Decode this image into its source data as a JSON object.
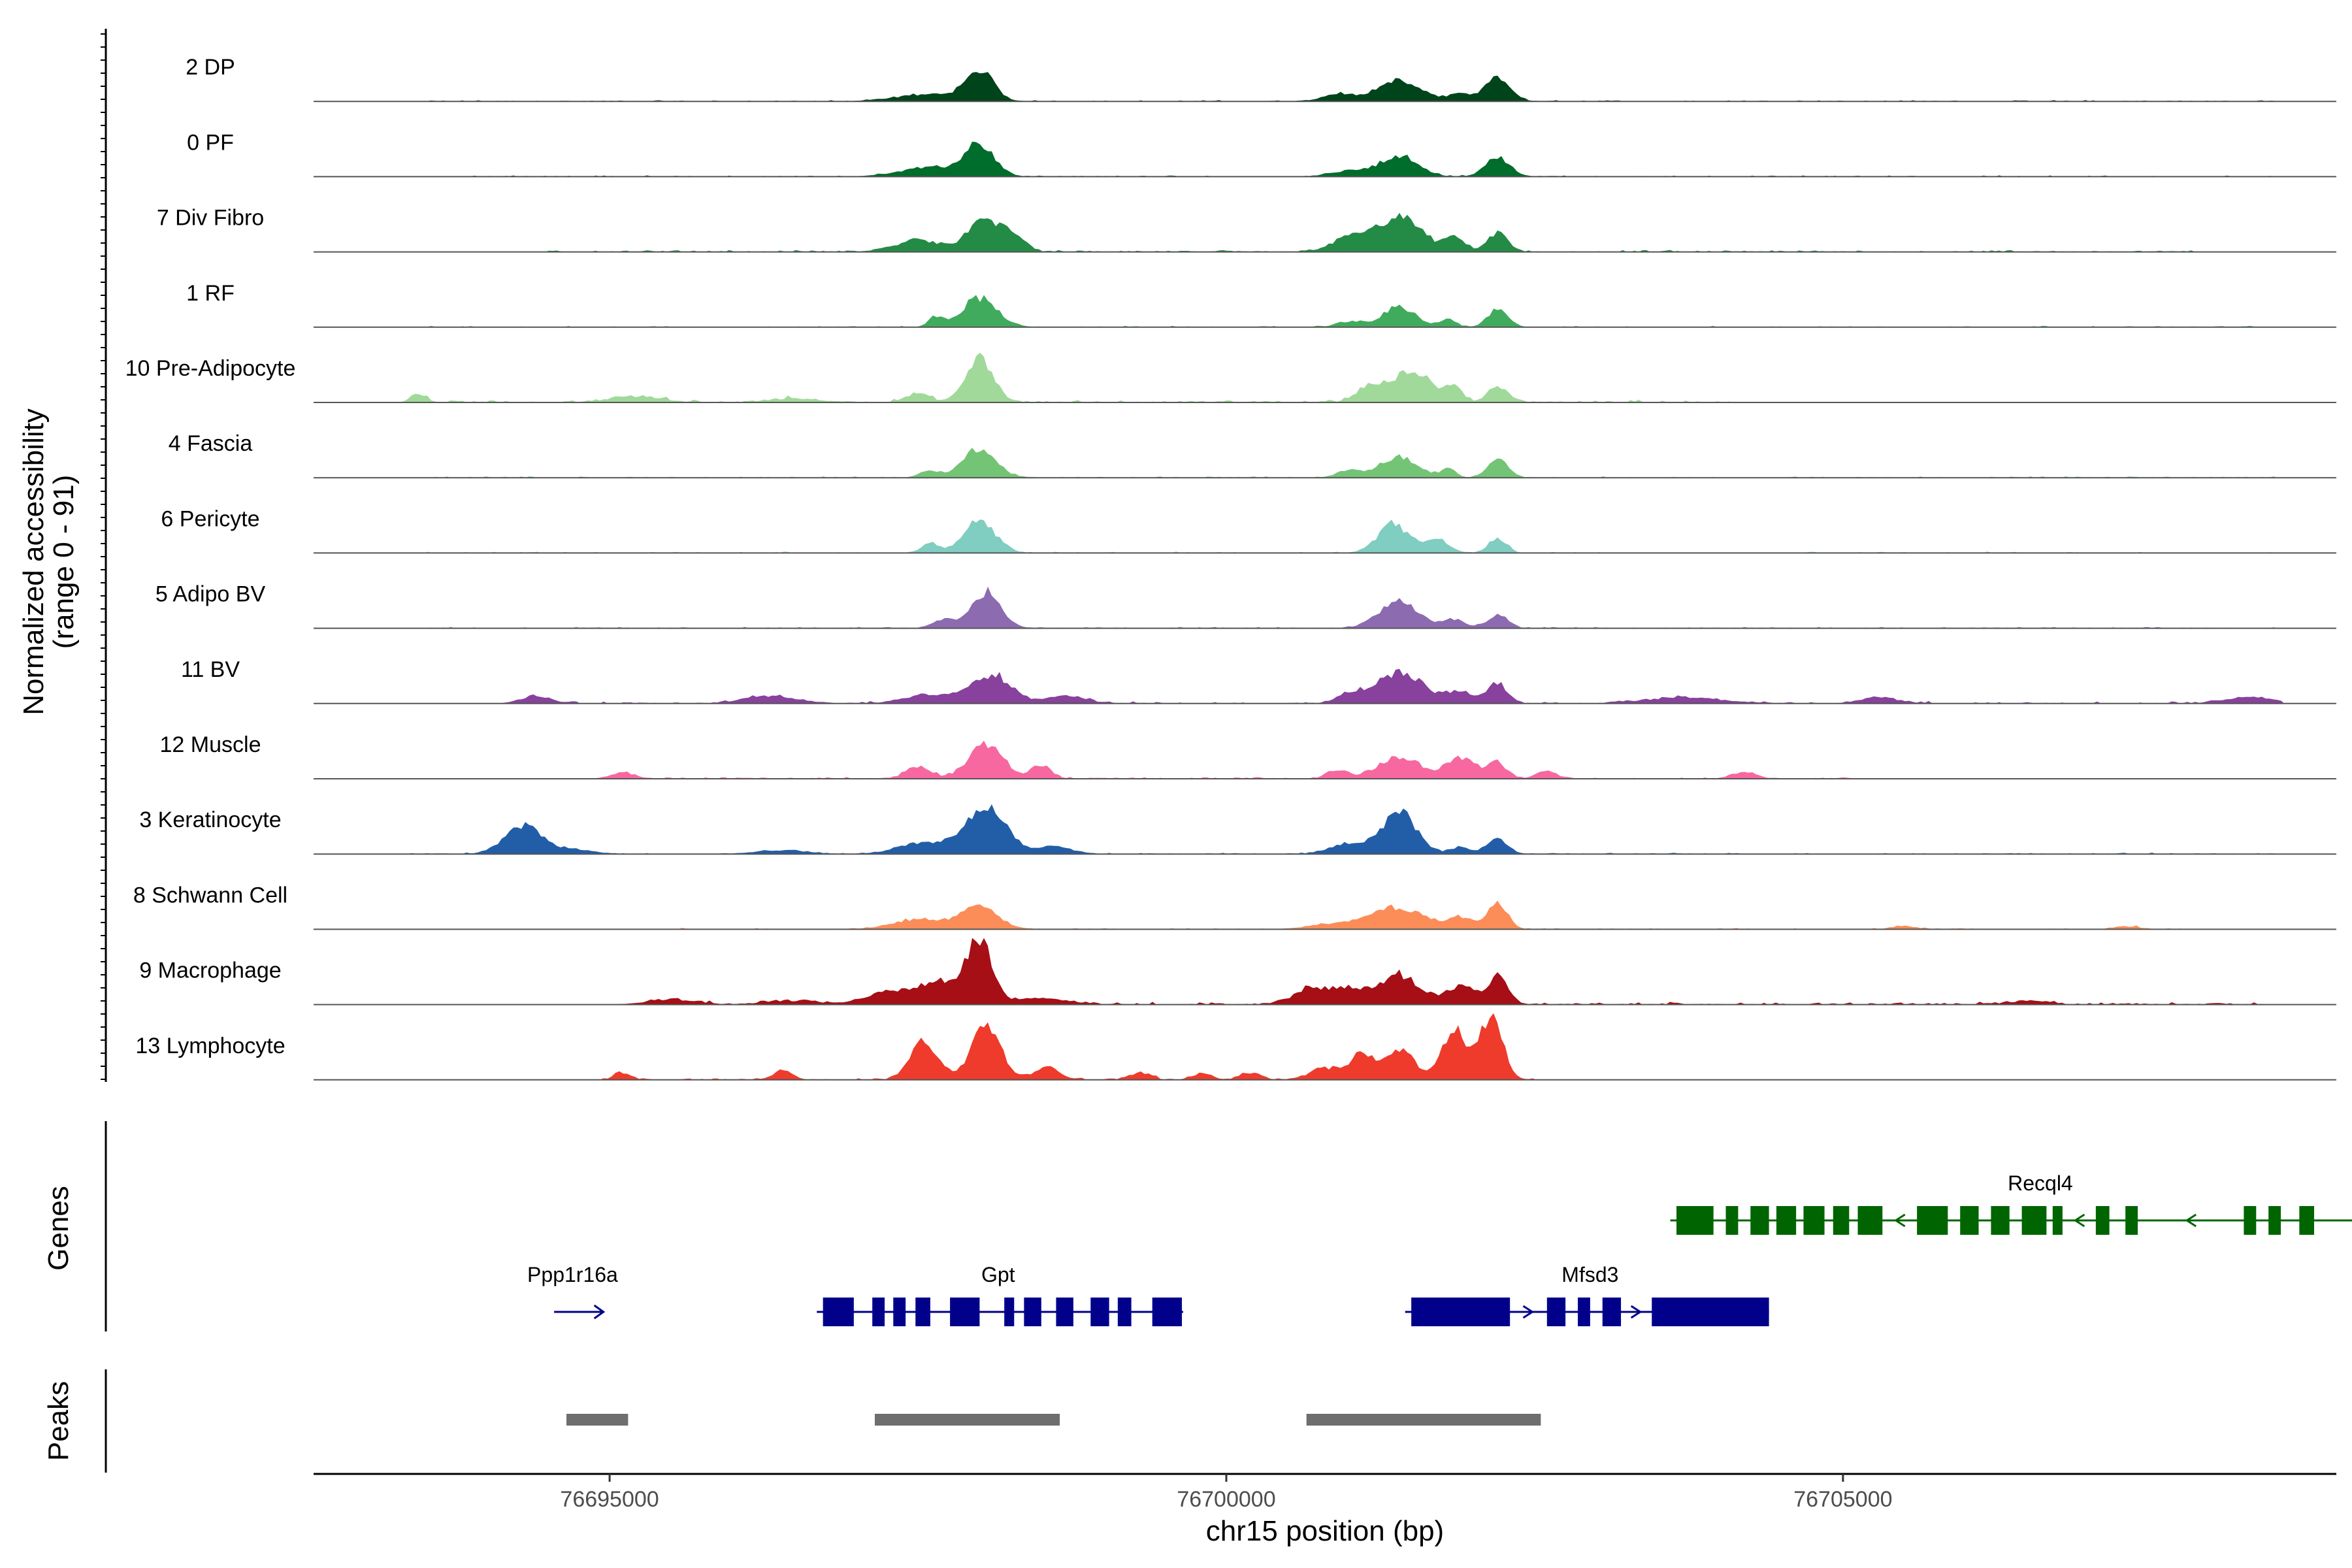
{
  "chart_data": {
    "type": "area",
    "title": "",
    "xlabel": "chr15 position (bp)",
    "ylabel_line1": "Normalized accessibility",
    "ylabel_line2": "(range 0 - 91)",
    "xlim": [
      76692600,
      76709000
    ],
    "ylim": [
      0,
      91
    ],
    "x_ticks": [
      76695000,
      76700000,
      76705000
    ],
    "x_tick_labels": [
      "76695000",
      "76700000",
      "76705000"
    ],
    "panels": {
      "genes_label": "Genes",
      "peaks_label": "Peaks"
    },
    "tracks": [
      {
        "name": "2 DP",
        "color": "#00441B",
        "peaks": [
          [
            76698000,
            40,
            110
          ],
          [
            76697600,
            10,
            250
          ],
          [
            76701400,
            28,
            180
          ],
          [
            76700900,
            10,
            120
          ],
          [
            76702200,
            32,
            100
          ],
          [
            76701900,
            10,
            80
          ]
        ],
        "noise": [
          [
            76693500,
            76708500,
            2
          ]
        ]
      },
      {
        "name": "0 PF",
        "color": "#006D2C",
        "peaks": [
          [
            76698000,
            42,
            120
          ],
          [
            76697600,
            12,
            250
          ],
          [
            76701400,
            28,
            150
          ],
          [
            76701000,
            8,
            150
          ],
          [
            76702200,
            26,
            100
          ]
        ],
        "noise": [
          [
            76693500,
            76708500,
            2
          ]
        ]
      },
      {
        "name": "7 Div Fibro",
        "color": "#238B45",
        "peaks": [
          [
            76698050,
            44,
            140
          ],
          [
            76697500,
            16,
            180
          ],
          [
            76698300,
            18,
            80
          ],
          [
            76701400,
            46,
            180
          ],
          [
            76701000,
            18,
            150
          ],
          [
            76701850,
            20,
            80
          ],
          [
            76702200,
            26,
            80
          ]
        ],
        "noise": [
          [
            76694500,
            76708000,
            3
          ]
        ]
      },
      {
        "name": "1 RF",
        "color": "#41AB5D",
        "peaks": [
          [
            76698000,
            40,
            140
          ],
          [
            76697650,
            14,
            60
          ],
          [
            76701400,
            28,
            130
          ],
          [
            76701000,
            8,
            100
          ],
          [
            76701800,
            12,
            60
          ],
          [
            76702200,
            24,
            80
          ]
        ],
        "noise": [
          [
            76693500,
            76708500,
            2
          ]
        ]
      },
      {
        "name": "10 Pre-Adipocyte",
        "color": "#A1D99B",
        "peaks": [
          [
            76698000,
            62,
            110
          ],
          [
            76697500,
            12,
            100
          ],
          [
            76701500,
            44,
            160
          ],
          [
            76701150,
            20,
            100
          ],
          [
            76701850,
            22,
            60
          ],
          [
            76702200,
            22,
            80
          ],
          [
            76693450,
            12,
            60
          ],
          [
            76695200,
            8,
            200
          ],
          [
            76696500,
            5,
            200
          ]
        ],
        "noise": [
          [
            76693300,
            76704200,
            4
          ]
        ]
      },
      {
        "name": "4 Fascia",
        "color": "#74C476",
        "peaks": [
          [
            76698000,
            40,
            130
          ],
          [
            76697600,
            10,
            80
          ],
          [
            76701400,
            28,
            150
          ],
          [
            76701000,
            10,
            100
          ],
          [
            76701800,
            12,
            60
          ],
          [
            76702200,
            26,
            80
          ]
        ],
        "noise": [
          [
            76693500,
            76708500,
            2
          ]
        ]
      },
      {
        "name": "6 Pericyte",
        "color": "#80CDC1",
        "peaks": [
          [
            76698000,
            42,
            130
          ],
          [
            76697600,
            14,
            70
          ],
          [
            76701350,
            40,
            120
          ],
          [
            76701700,
            18,
            100
          ],
          [
            76702200,
            20,
            70
          ]
        ],
        "noise": [
          [
            76693500,
            76708500,
            2
          ]
        ]
      },
      {
        "name": "5 Adipo BV",
        "color": "#8C6BB1",
        "peaks": [
          [
            76698050,
            50,
            120
          ],
          [
            76697700,
            12,
            80
          ],
          [
            76701400,
            36,
            160
          ],
          [
            76701850,
            12,
            80
          ],
          [
            76702200,
            18,
            80
          ]
        ],
        "noise": [
          [
            76693500,
            76708500,
            2
          ]
        ]
      },
      {
        "name": "11 BV",
        "color": "#88419D",
        "peaks": [
          [
            76698100,
            38,
            160
          ],
          [
            76697600,
            12,
            200
          ],
          [
            76698700,
            10,
            150
          ],
          [
            76701400,
            42,
            200
          ],
          [
            76701000,
            10,
            100
          ],
          [
            76701900,
            16,
            100
          ],
          [
            76702200,
            28,
            80
          ],
          [
            76694400,
            10,
            120
          ],
          [
            76696300,
            10,
            200
          ],
          [
            76703700,
            8,
            300
          ],
          [
            76705300,
            8,
            150
          ],
          [
            76708300,
            8,
            200
          ]
        ],
        "noise": [
          [
            76694200,
            76708600,
            3
          ]
        ]
      },
      {
        "name": "12 Muscle",
        "color": "#F768A1",
        "peaks": [
          [
            76698050,
            48,
            140
          ],
          [
            76697500,
            16,
            100
          ],
          [
            76698500,
            18,
            80
          ],
          [
            76701400,
            30,
            170
          ],
          [
            76700900,
            12,
            80
          ],
          [
            76701900,
            28,
            120
          ],
          [
            76702200,
            20,
            80
          ],
          [
            76702600,
            10,
            80
          ],
          [
            76695100,
            8,
            100
          ],
          [
            76704200,
            8,
            100
          ]
        ],
        "noise": [
          [
            76695000,
            76705300,
            3
          ]
        ]
      },
      {
        "name": "3 Keratinocyte",
        "color": "#225EA8",
        "peaks": [
          [
            76698050,
            66,
            160
          ],
          [
            76697550,
            16,
            200
          ],
          [
            76698600,
            10,
            150
          ],
          [
            76701400,
            56,
            140
          ],
          [
            76701000,
            14,
            150
          ],
          [
            76701900,
            10,
            80
          ],
          [
            76702200,
            22,
            80
          ],
          [
            76694300,
            38,
            150
          ],
          [
            76694700,
            6,
            150
          ],
          [
            76696400,
            5,
            200
          ]
        ],
        "noise": [
          [
            76693300,
            76708500,
            2
          ]
        ]
      },
      {
        "name": "8 Schwann Cell",
        "color": "#FC8D59",
        "peaks": [
          [
            76698000,
            30,
            150
          ],
          [
            76697500,
            14,
            200
          ],
          [
            76701400,
            30,
            200
          ],
          [
            76700900,
            8,
            200
          ],
          [
            76701900,
            16,
            100
          ],
          [
            76702200,
            36,
            80
          ],
          [
            76705500,
            4,
            100
          ],
          [
            76707300,
            4,
            100
          ]
        ],
        "noise": [
          [
            76695500,
            76708000,
            2
          ]
        ]
      },
      {
        "name": "9 Macrophage",
        "color": "#A50F15",
        "peaks": [
          [
            76698000,
            86,
            100
          ],
          [
            76697700,
            30,
            150
          ],
          [
            76697300,
            18,
            200
          ],
          [
            76698500,
            8,
            200
          ],
          [
            76701400,
            40,
            160
          ],
          [
            76701000,
            18,
            120
          ],
          [
            76700700,
            22,
            150
          ],
          [
            76701900,
            24,
            120
          ],
          [
            76702200,
            38,
            80
          ],
          [
            76695500,
            6,
            200
          ],
          [
            76696500,
            5,
            200
          ],
          [
            76706500,
            5,
            150
          ]
        ],
        "noise": [
          [
            76695300,
            76708400,
            4
          ]
        ]
      },
      {
        "name": "13 Lymphocyte",
        "color": "#EF3B2C",
        "peaks": [
          [
            76698050,
            70,
            120
          ],
          [
            76697550,
            54,
            110
          ],
          [
            76698550,
            18,
            100
          ],
          [
            76701850,
            70,
            100
          ],
          [
            76702150,
            86,
            90
          ],
          [
            76701400,
            42,
            120
          ],
          [
            76701100,
            34,
            100
          ],
          [
            76700800,
            16,
            120
          ],
          [
            76696400,
            12,
            80
          ],
          [
            76699300,
            10,
            80
          ],
          [
            76699800,
            8,
            80
          ],
          [
            76700200,
            10,
            80
          ],
          [
            76695100,
            10,
            60
          ]
        ],
        "noise": [
          [
            76694900,
            76702500,
            3
          ]
        ]
      }
    ],
    "genes": [
      {
        "name": "Ppp1r16a",
        "row": 1,
        "strand": "+",
        "color": "#00008B",
        "start": 76694550,
        "end": 76694950,
        "exons": [],
        "label_x": 76694700
      },
      {
        "name": "Gpt",
        "row": 1,
        "strand": "+",
        "color": "#00008B",
        "start": 76696680,
        "end": 76699650,
        "exons": [
          [
            76696730,
            76696980
          ],
          [
            76697130,
            76697230
          ],
          [
            76697300,
            76697400
          ],
          [
            76697480,
            76697600
          ],
          [
            76697760,
            76698000
          ],
          [
            76698200,
            76698280
          ],
          [
            76698360,
            76698500
          ],
          [
            76698620,
            76698760
          ],
          [
            76698900,
            76699050
          ],
          [
            76699120,
            76699230
          ],
          [
            76699400,
            76699640
          ]
        ],
        "label_x": 76698150
      },
      {
        "name": "Mfsd3",
        "row": 1,
        "strand": "+",
        "color": "#00008B",
        "start": 76701450,
        "end": 76704400,
        "exons": [
          [
            76701500,
            76702300
          ],
          [
            76702600,
            76702750
          ],
          [
            76702850,
            76702950
          ],
          [
            76703050,
            76703200
          ],
          [
            76703450,
            76704400
          ]
        ],
        "label_x": 76702950
      },
      {
        "name": "Recql4",
        "row": 0,
        "strand": "-",
        "color": "#006400",
        "start": 76703600,
        "end": 76709200,
        "exons": [
          [
            76703650,
            76703950
          ],
          [
            76704050,
            76704150
          ],
          [
            76704250,
            76704400
          ],
          [
            76704460,
            76704620
          ],
          [
            76704680,
            76704850
          ],
          [
            76704920,
            76705050
          ],
          [
            76705120,
            76705320
          ],
          [
            76705600,
            76705850
          ],
          [
            76705950,
            76706100
          ],
          [
            76706200,
            76706350
          ],
          [
            76706450,
            76706650
          ],
          [
            76706700,
            76706780
          ],
          [
            76707050,
            76707160
          ],
          [
            76707290,
            76707390
          ],
          [
            76708250,
            76708350
          ],
          [
            76708450,
            76708550
          ],
          [
            76708700,
            76708820
          ]
        ],
        "label_x": 76706600
      }
    ],
    "peak_regions": [
      [
        76694650,
        76695150
      ],
      [
        76697150,
        76698650
      ],
      [
        76700650,
        76702550
      ]
    ]
  }
}
